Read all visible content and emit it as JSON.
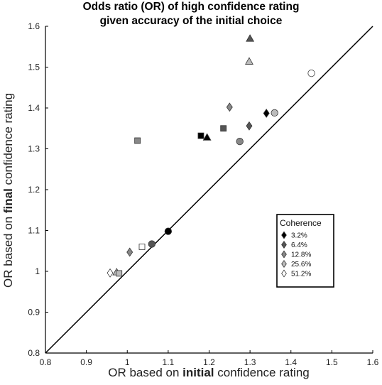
{
  "chart_data": {
    "type": "scatter",
    "title_line1": "Odds ratio (OR) of high confidence rating",
    "title_line2": "given accuracy of the initial choice",
    "xlabel_pre": "OR based on ",
    "xlabel_bold": "initial",
    "xlabel_post": " confidence rating",
    "ylabel_pre": "OR based on ",
    "ylabel_bold": "final",
    "ylabel_post": " confidence rating",
    "xlim": [
      0.8,
      1.6
    ],
    "ylim": [
      0.8,
      1.6
    ],
    "xticks": [
      "0.8",
      "0.9",
      "1",
      "1.1",
      "1.2",
      "1.3",
      "1.4",
      "1.5",
      "1.6"
    ],
    "yticks": [
      "0.8",
      "0.9",
      "1",
      "1.1",
      "1.2",
      "1.3",
      "1.4",
      "1.5",
      "1.6"
    ],
    "identity_line": true,
    "grid": false,
    "legend": {
      "title": "Coherence",
      "placement": "lower-right",
      "entries": [
        {
          "label": "3.2%",
          "color": "#000000"
        },
        {
          "label": "6.4%",
          "color": "#555555"
        },
        {
          "label": "12.8%",
          "color": "#888888"
        },
        {
          "label": "25.6%",
          "color": "#bbbbbb"
        },
        {
          "label": "51.2%",
          "color": "#ffffff"
        }
      ]
    },
    "points": [
      {
        "x": 1.45,
        "y": 1.485,
        "shape": "circle",
        "color": "#ffffff"
      },
      {
        "x": 1.36,
        "y": 1.388,
        "shape": "circle",
        "color": "#bbbbbb"
      },
      {
        "x": 1.275,
        "y": 1.318,
        "shape": "circle",
        "color": "#888888"
      },
      {
        "x": 1.06,
        "y": 1.067,
        "shape": "circle",
        "color": "#555555"
      },
      {
        "x": 1.1,
        "y": 1.098,
        "shape": "circle",
        "color": "#000000"
      },
      {
        "x": 1.3,
        "y": 1.57,
        "shape": "triangle",
        "color": "#555555"
      },
      {
        "x": 1.298,
        "y": 1.514,
        "shape": "triangle",
        "color": "#bbbbbb"
      },
      {
        "x": 1.195,
        "y": 1.328,
        "shape": "triangle",
        "color": "#000000"
      },
      {
        "x": 0.974,
        "y": 0.998,
        "shape": "triangle",
        "color": "#bbbbbb"
      },
      {
        "x": 1.025,
        "y": 1.32,
        "shape": "square",
        "color": "#888888"
      },
      {
        "x": 1.18,
        "y": 1.332,
        "shape": "square",
        "color": "#000000"
      },
      {
        "x": 1.235,
        "y": 1.35,
        "shape": "square",
        "color": "#555555"
      },
      {
        "x": 1.036,
        "y": 1.06,
        "shape": "square",
        "color": "#ffffff"
      },
      {
        "x": 0.98,
        "y": 0.995,
        "shape": "square",
        "color": "#bbbbbb"
      },
      {
        "x": 1.34,
        "y": 1.387,
        "shape": "diamond",
        "color": "#000000"
      },
      {
        "x": 1.298,
        "y": 1.356,
        "shape": "diamond",
        "color": "#555555"
      },
      {
        "x": 1.25,
        "y": 1.402,
        "shape": "diamond",
        "color": "#888888"
      },
      {
        "x": 1.006,
        "y": 1.047,
        "shape": "diamond",
        "color": "#888888"
      },
      {
        "x": 0.958,
        "y": 0.996,
        "shape": "diamond",
        "color": "#ffffff"
      }
    ]
  }
}
